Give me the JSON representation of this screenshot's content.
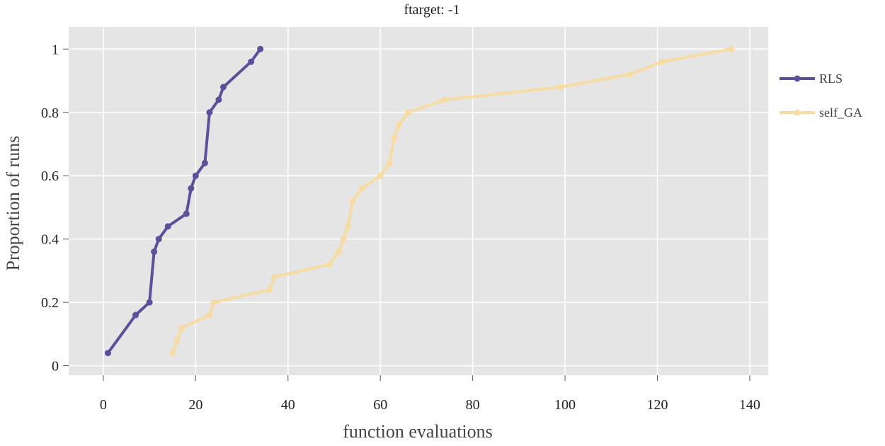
{
  "chart_data": {
    "type": "line",
    "title": "ftarget: -1",
    "xlabel": "function evaluations",
    "ylabel": "Proportion of runs",
    "xlim": [
      -7.5,
      144
    ],
    "ylim": [
      -0.03,
      1.07
    ],
    "xticks": [
      0,
      20,
      40,
      60,
      80,
      100,
      120,
      140
    ],
    "yticks": [
      0,
      0.2,
      0.4,
      0.6,
      0.8,
      1
    ],
    "xtick_labels": [
      "0",
      "20",
      "40",
      "60",
      "80",
      "100",
      "120",
      "140"
    ],
    "ytick_labels": [
      "0",
      "0.2",
      "0.4",
      "0.6",
      "0.8",
      "1"
    ],
    "grid": true,
    "background": "#e5e5e5",
    "legend_position": "right",
    "series": [
      {
        "name": "RLS",
        "color": "#5b509a",
        "x": [
          1,
          7,
          10,
          11,
          12,
          14,
          18,
          19,
          20,
          22,
          23,
          25,
          26,
          32,
          34
        ],
        "y": [
          0.04,
          0.16,
          0.2,
          0.36,
          0.4,
          0.44,
          0.48,
          0.56,
          0.6,
          0.64,
          0.8,
          0.84,
          0.88,
          0.96,
          1.0
        ]
      },
      {
        "name": "self_GA",
        "color": "#f6dba2",
        "x": [
          15,
          16,
          17,
          23,
          24,
          36,
          37,
          49,
          51,
          52,
          53,
          54,
          56,
          60,
          62,
          63,
          64,
          66,
          74,
          99,
          114,
          121,
          136
        ],
        "y": [
          0.04,
          0.08,
          0.12,
          0.16,
          0.2,
          0.24,
          0.28,
          0.32,
          0.36,
          0.4,
          0.44,
          0.52,
          0.56,
          0.6,
          0.64,
          0.72,
          0.76,
          0.8,
          0.84,
          0.88,
          0.92,
          0.96,
          1.0
        ]
      }
    ]
  }
}
